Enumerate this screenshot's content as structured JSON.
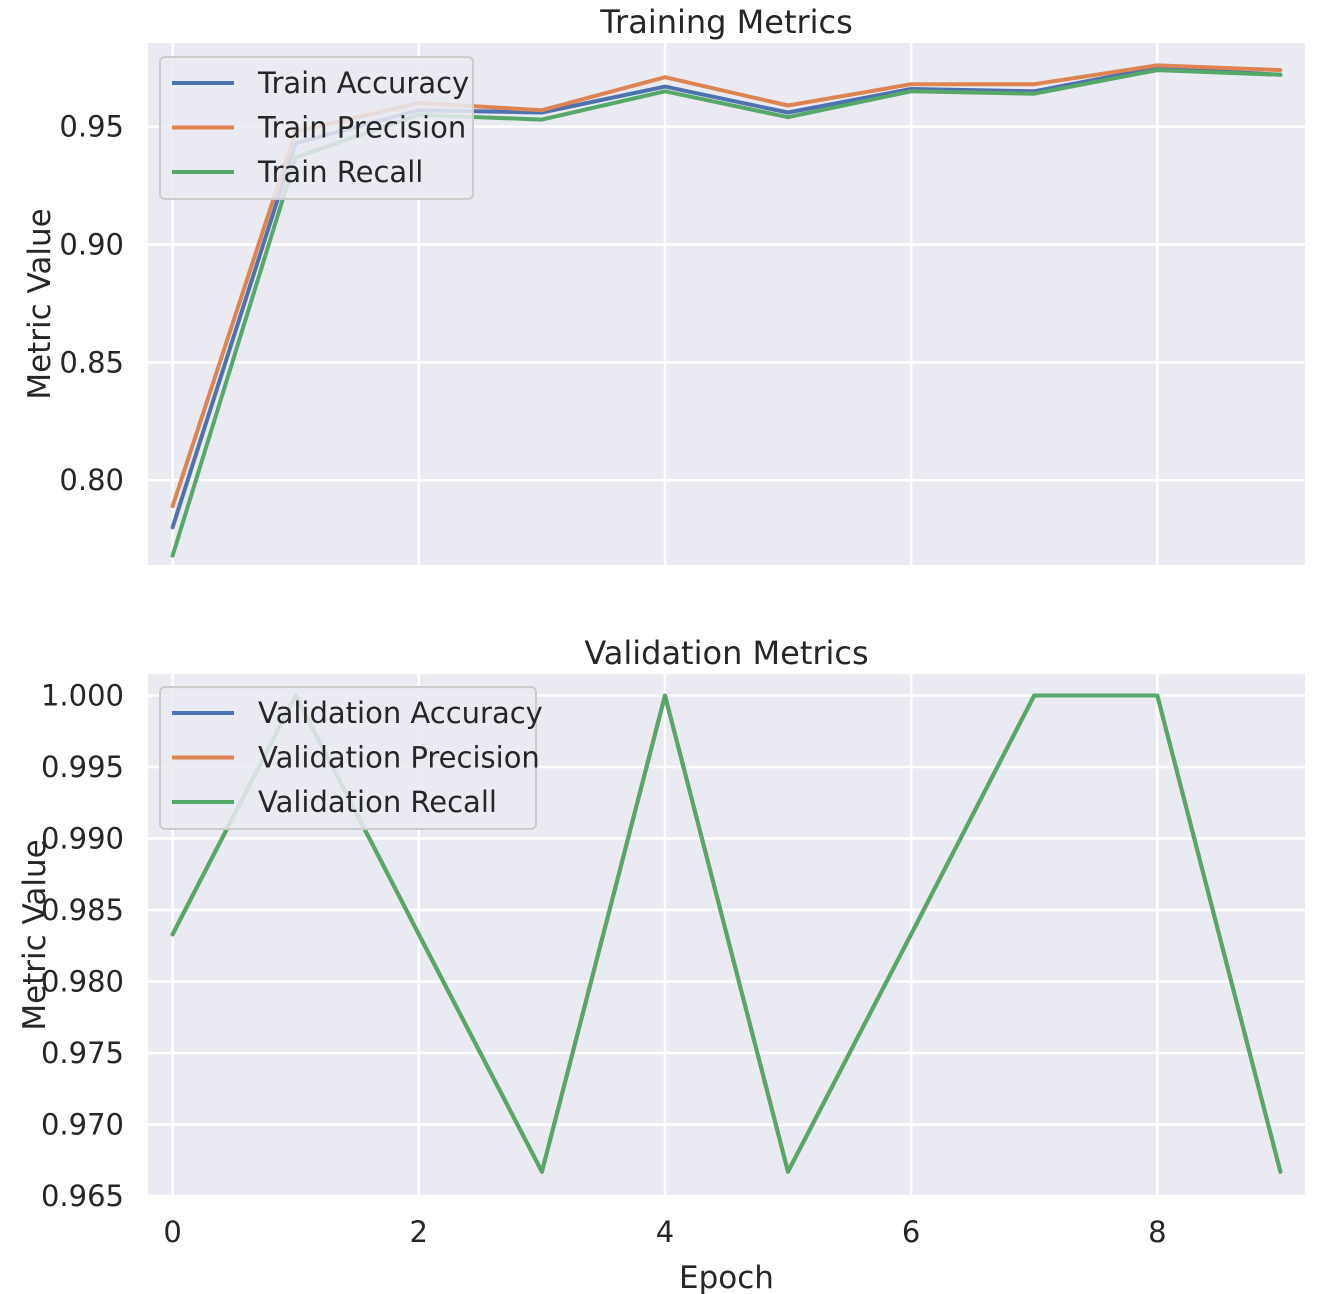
{
  "colors": {
    "accuracy": "#4c72b0",
    "precision": "#dd8452",
    "recall": "#55a868"
  },
  "chart_data": [
    {
      "type": "line",
      "title": "Training Metrics",
      "xlabel": "",
      "ylabel": "Metric Value",
      "x": [
        0,
        1,
        2,
        3,
        4,
        5,
        6,
        7,
        8,
        9
      ],
      "xlim": [
        -0.2,
        9.2
      ],
      "ylim": [
        0.764,
        0.9855
      ],
      "yticks": [
        0.8,
        0.85,
        0.9,
        0.95
      ],
      "ytick_labels": [
        "0.80",
        "0.85",
        "0.90",
        "0.95"
      ],
      "xticks": [
        0,
        2,
        4,
        6,
        8
      ],
      "grid": true,
      "legend_position": "top-left",
      "series": [
        {
          "name": "Train Accuracy",
          "color_key": "accuracy",
          "values": [
            0.78,
            0.943,
            0.957,
            0.956,
            0.967,
            0.956,
            0.966,
            0.965,
            0.975,
            0.972
          ]
        },
        {
          "name": "Train Precision",
          "color_key": "precision",
          "values": [
            0.789,
            0.948,
            0.96,
            0.957,
            0.971,
            0.959,
            0.968,
            0.968,
            0.976,
            0.974
          ]
        },
        {
          "name": "Train Recall",
          "color_key": "recall",
          "values": [
            0.768,
            0.937,
            0.955,
            0.953,
            0.965,
            0.954,
            0.965,
            0.964,
            0.974,
            0.972
          ]
        }
      ]
    },
    {
      "type": "line",
      "title": "Validation Metrics",
      "xlabel": "Epoch",
      "ylabel": "Metric Value",
      "x": [
        0,
        1,
        2,
        3,
        4,
        5,
        6,
        7,
        8,
        9
      ],
      "xlim": [
        -0.2,
        9.2
      ],
      "ylim": [
        0.965,
        1.0015
      ],
      "yticks": [
        0.965,
        0.97,
        0.975,
        0.98,
        0.985,
        0.99,
        0.995,
        1.0
      ],
      "ytick_labels": [
        "0.965",
        "0.970",
        "0.975",
        "0.980",
        "0.985",
        "0.990",
        "0.995",
        "1.000"
      ],
      "xticks": [
        0,
        2,
        4,
        6,
        8
      ],
      "xtick_labels": [
        "0",
        "2",
        "4",
        "6",
        "8"
      ],
      "grid": true,
      "legend_position": "top-left",
      "series": [
        {
          "name": "Validation Accuracy",
          "color_key": "accuracy",
          "values": [
            0.9833,
            1.0,
            0.9833,
            0.9667,
            1.0,
            0.9667,
            0.9833,
            1.0,
            1.0,
            0.9667
          ]
        },
        {
          "name": "Validation Precision",
          "color_key": "precision",
          "values": [
            0.9833,
            1.0,
            0.9833,
            0.9667,
            1.0,
            0.9667,
            0.9833,
            1.0,
            1.0,
            0.9667
          ]
        },
        {
          "name": "Validation Recall",
          "color_key": "recall",
          "values": [
            0.9833,
            1.0,
            0.9833,
            0.9667,
            1.0,
            0.9667,
            0.9833,
            1.0,
            1.0,
            0.9667
          ]
        }
      ]
    }
  ]
}
